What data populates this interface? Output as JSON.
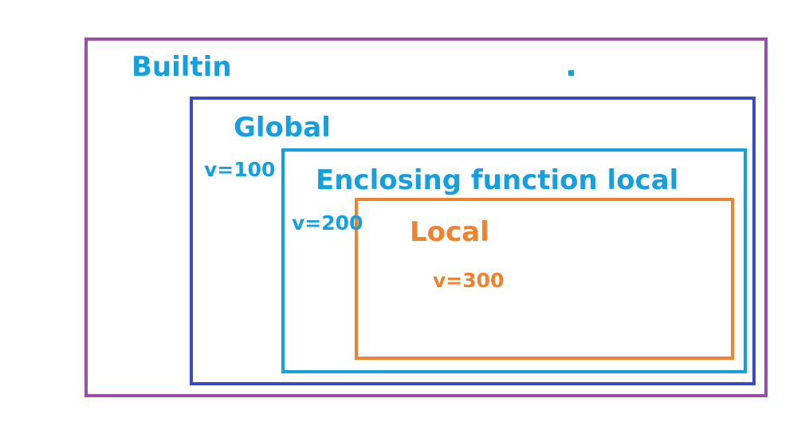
{
  "scopes": {
    "builtin": {
      "title": "Builtin",
      "color": "#9b4ea8"
    },
    "global": {
      "title": "Global",
      "value": "v=100",
      "color": "#3d49c4"
    },
    "enclosing": {
      "title": "Enclosing function local",
      "value": "v=200",
      "color": "#169fde"
    },
    "local": {
      "title": "Local",
      "value": "v=300",
      "color": "#f0812e"
    }
  },
  "text_colors": {
    "blue": "#169fde",
    "orange": "#f0812e"
  }
}
